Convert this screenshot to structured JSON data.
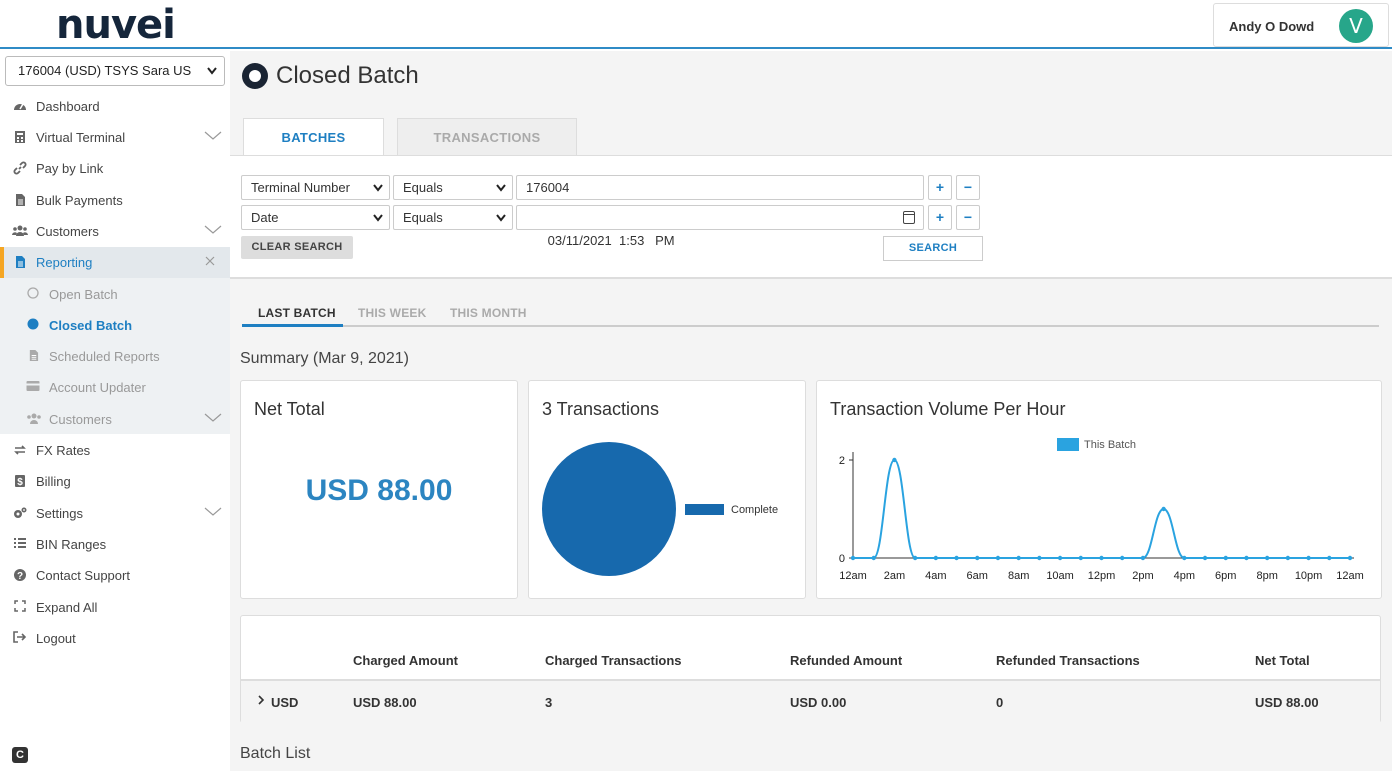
{
  "header": {
    "logo": "nuvei",
    "user_name": "Andy O Dowd",
    "avatar_initial": "V"
  },
  "sidebar": {
    "merchant_select": "176004 (USD) TSYS Sara US",
    "items": [
      {
        "label": "Dashboard",
        "icon": "dashboard-icon"
      },
      {
        "label": "Virtual Terminal",
        "icon": "calculator-icon"
      },
      {
        "label": "Pay by Link",
        "icon": "link-icon"
      },
      {
        "label": "Bulk Payments",
        "icon": "file-icon"
      },
      {
        "label": "Customers",
        "icon": "users-icon"
      },
      {
        "label": "Reporting",
        "icon": "file-icon"
      },
      {
        "label": "FX Rates",
        "icon": "exchange-icon"
      },
      {
        "label": "Billing",
        "icon": "dollar-icon"
      },
      {
        "label": "Settings",
        "icon": "gears-icon"
      },
      {
        "label": "BIN Ranges",
        "icon": "list-icon"
      },
      {
        "label": "Contact Support",
        "icon": "question-icon"
      },
      {
        "label": "Expand All",
        "icon": "expand-icon"
      },
      {
        "label": "Logout",
        "icon": "logout-icon"
      }
    ],
    "reporting_sub": [
      {
        "label": "Open Batch"
      },
      {
        "label": "Closed Batch"
      },
      {
        "label": "Scheduled Reports"
      },
      {
        "label": "Account Updater"
      },
      {
        "label": "Customers"
      }
    ]
  },
  "page": {
    "title": "Closed Batch",
    "tabs": [
      "BATCHES",
      "TRANSACTIONS"
    ]
  },
  "search": {
    "row1": {
      "field": "Terminal Number",
      "operator": "Equals",
      "value": "176004"
    },
    "row2": {
      "field": "Date",
      "operator": "Equals",
      "value": "03/11/2021  1:53   PM"
    },
    "plus": "+",
    "minus": "−",
    "clear_label": "CLEAR SEARCH",
    "search_label": "SEARCH"
  },
  "period_tabs": [
    "LAST BATCH",
    "THIS WEEK",
    "THIS MONTH"
  ],
  "summary": {
    "title": "Summary (Mar 9, 2021)",
    "net_total_title": "Net Total",
    "net_total_value": "USD 88.00",
    "transactions_title": "3 Transactions",
    "volume_title": "Transaction Volume Per Hour"
  },
  "chart_data": [
    {
      "type": "pie",
      "labels": [
        "Complete"
      ],
      "values": [
        3
      ],
      "colors": [
        "#1769ad"
      ]
    },
    {
      "type": "line",
      "title": "Transaction Volume Per Hour",
      "x": [
        "12am",
        "1am",
        "2am",
        "3am",
        "4am",
        "5am",
        "6am",
        "7am",
        "8am",
        "9am",
        "10am",
        "11am",
        "12pm",
        "1pm",
        "2pm",
        "3pm",
        "4pm",
        "5pm",
        "6pm",
        "7pm",
        "8pm",
        "9pm",
        "10pm",
        "11pm",
        "12am"
      ],
      "tick_labels": [
        "12am",
        "2am",
        "4am",
        "6am",
        "8am",
        "10am",
        "12pm",
        "2pm",
        "4pm",
        "6pm",
        "8pm",
        "10pm",
        "12am"
      ],
      "series": [
        {
          "name": "This Batch",
          "values": [
            0,
            0,
            2,
            0,
            0,
            0,
            0,
            0,
            0,
            0,
            0,
            0,
            0,
            0,
            0,
            1,
            0,
            0,
            0,
            0,
            0,
            0,
            0,
            0,
            0
          ],
          "color": "#2aa3e0"
        }
      ],
      "yticks": [
        0,
        2
      ],
      "ylim": [
        0,
        2
      ],
      "legend": "top"
    }
  ],
  "table": {
    "headers": [
      "Charged Amount",
      "Charged Transactions",
      "Refunded Amount",
      "Refunded Transactions",
      "Net Total"
    ],
    "row": {
      "currency": "USD",
      "charged_amount": "USD 88.00",
      "charged_transactions": "3",
      "refunded_amount": "USD 0.00",
      "refunded_transactions": "0",
      "net_total": "USD 88.00"
    }
  },
  "batch_list_title": "Batch List"
}
